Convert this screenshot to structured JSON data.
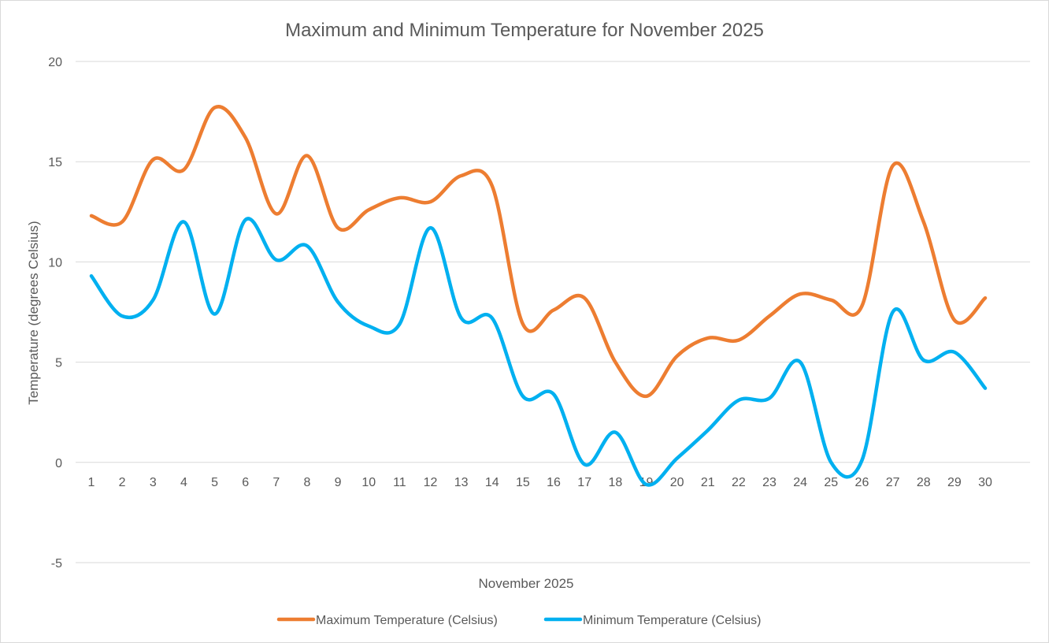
{
  "chart_data": {
    "type": "line",
    "title": "Maximum and Minimum Temperature for November 2025",
    "xlabel": "November 2025",
    "ylabel": "Temperature (degrees Celsius)",
    "ylim": [
      -5,
      20
    ],
    "yticks": [
      -5,
      0,
      5,
      10,
      15,
      20
    ],
    "grid": true,
    "smooth": true,
    "legend_position": "bottom",
    "x": [
      1,
      2,
      3,
      4,
      5,
      6,
      7,
      8,
      9,
      10,
      11,
      12,
      13,
      14,
      15,
      16,
      17,
      18,
      19,
      20,
      21,
      22,
      23,
      24,
      25,
      26,
      27,
      28,
      29,
      30
    ],
    "series": [
      {
        "name": "Maximum Temperature (Celsius)",
        "color": "#ed7d31",
        "values": [
          12.3,
          12.0,
          15.1,
          14.6,
          17.7,
          16.2,
          12.4,
          15.3,
          11.7,
          12.6,
          13.2,
          13.0,
          14.3,
          13.8,
          6.9,
          7.6,
          8.2,
          5.0,
          3.3,
          5.3,
          6.2,
          6.1,
          7.3,
          8.4,
          8.1,
          7.8,
          14.8,
          12.0,
          7.1,
          8.2
        ]
      },
      {
        "name": "Minimum Temperature (Celsius)",
        "color": "#00b0f0",
        "values": [
          9.3,
          7.3,
          8.1,
          12.0,
          7.4,
          12.1,
          10.1,
          10.8,
          8.0,
          6.8,
          6.9,
          11.7,
          7.2,
          7.2,
          3.3,
          3.4,
          -0.1,
          1.5,
          -1.1,
          0.2,
          1.6,
          3.1,
          3.2,
          5.0,
          0.0,
          0.1,
          7.5,
          5.1,
          5.5,
          3.7
        ]
      }
    ]
  }
}
